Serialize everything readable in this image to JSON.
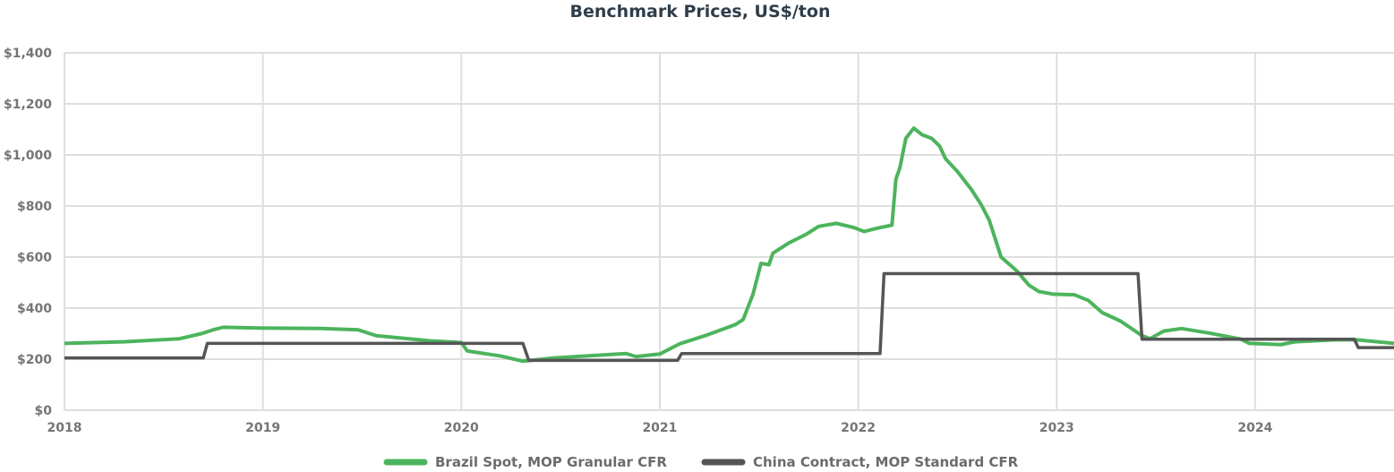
{
  "chart_data": {
    "type": "line",
    "title": "Benchmark Prices, US$/ton",
    "xlabel": "",
    "ylabel": "",
    "xlim": [
      2018,
      2024.7
    ],
    "ylim": [
      0,
      1400
    ],
    "x_ticks": [
      "2018",
      "2019",
      "2020",
      "2021",
      "2022",
      "2023",
      "2024"
    ],
    "y_ticks": [
      "$0",
      "$200",
      "$400",
      "$600",
      "$800",
      "$1,000",
      "$1,200",
      "$1,400"
    ],
    "grid": true,
    "legend_position": "bottom",
    "series": [
      {
        "name": "Brazil Spot, MOP Granular CFR",
        "color": "#4cb45c",
        "points": [
          [
            2018.0,
            262
          ],
          [
            2018.3,
            268
          ],
          [
            2018.58,
            280
          ],
          [
            2018.69,
            300
          ],
          [
            2018.75,
            315
          ],
          [
            2018.8,
            325
          ],
          [
            2018.98,
            322
          ],
          [
            2019.3,
            320
          ],
          [
            2019.48,
            315
          ],
          [
            2019.57,
            292
          ],
          [
            2019.84,
            272
          ],
          [
            2020.0,
            265
          ],
          [
            2020.03,
            232
          ],
          [
            2020.2,
            212
          ],
          [
            2020.31,
            192
          ],
          [
            2020.47,
            205
          ],
          [
            2020.83,
            222
          ],
          [
            2020.88,
            210
          ],
          [
            2021.0,
            220
          ],
          [
            2021.1,
            260
          ],
          [
            2021.24,
            295
          ],
          [
            2021.38,
            335
          ],
          [
            2021.42,
            355
          ],
          [
            2021.44,
            395
          ],
          [
            2021.47,
            455
          ],
          [
            2021.51,
            575
          ],
          [
            2021.55,
            570
          ],
          [
            2021.57,
            615
          ],
          [
            2021.65,
            655
          ],
          [
            2021.74,
            690
          ],
          [
            2021.8,
            720
          ],
          [
            2021.89,
            732
          ],
          [
            2021.98,
            715
          ],
          [
            2022.03,
            700
          ],
          [
            2022.09,
            712
          ],
          [
            2022.17,
            725
          ],
          [
            2022.19,
            905
          ],
          [
            2022.21,
            950
          ],
          [
            2022.24,
            1065
          ],
          [
            2022.28,
            1105
          ],
          [
            2022.32,
            1080
          ],
          [
            2022.37,
            1065
          ],
          [
            2022.41,
            1035
          ],
          [
            2022.44,
            985
          ],
          [
            2022.5,
            935
          ],
          [
            2022.57,
            865
          ],
          [
            2022.62,
            805
          ],
          [
            2022.66,
            745
          ],
          [
            2022.72,
            600
          ],
          [
            2022.8,
            545
          ],
          [
            2022.86,
            490
          ],
          [
            2022.91,
            465
          ],
          [
            2022.98,
            455
          ],
          [
            2023.09,
            452
          ],
          [
            2023.16,
            430
          ],
          [
            2023.23,
            382
          ],
          [
            2023.32,
            350
          ],
          [
            2023.43,
            292
          ],
          [
            2023.47,
            280
          ],
          [
            2023.54,
            310
          ],
          [
            2023.63,
            320
          ],
          [
            2023.77,
            302
          ],
          [
            2023.93,
            278
          ],
          [
            2023.97,
            262
          ],
          [
            2024.13,
            257
          ],
          [
            2024.2,
            268
          ],
          [
            2024.4,
            276
          ],
          [
            2024.51,
            276
          ],
          [
            2024.7,
            262
          ]
        ]
      },
      {
        "name": "China Contract, MOP Standard CFR",
        "color": "#555555",
        "points": [
          [
            2018.0,
            205
          ],
          [
            2018.7,
            205
          ],
          [
            2018.72,
            262
          ],
          [
            2020.31,
            262
          ],
          [
            2020.34,
            195
          ],
          [
            2021.09,
            195
          ],
          [
            2021.11,
            222
          ],
          [
            2022.11,
            222
          ],
          [
            2022.13,
            535
          ],
          [
            2023.41,
            535
          ],
          [
            2023.43,
            278
          ],
          [
            2024.5,
            278
          ],
          [
            2024.52,
            245
          ],
          [
            2024.7,
            245
          ]
        ]
      }
    ]
  }
}
